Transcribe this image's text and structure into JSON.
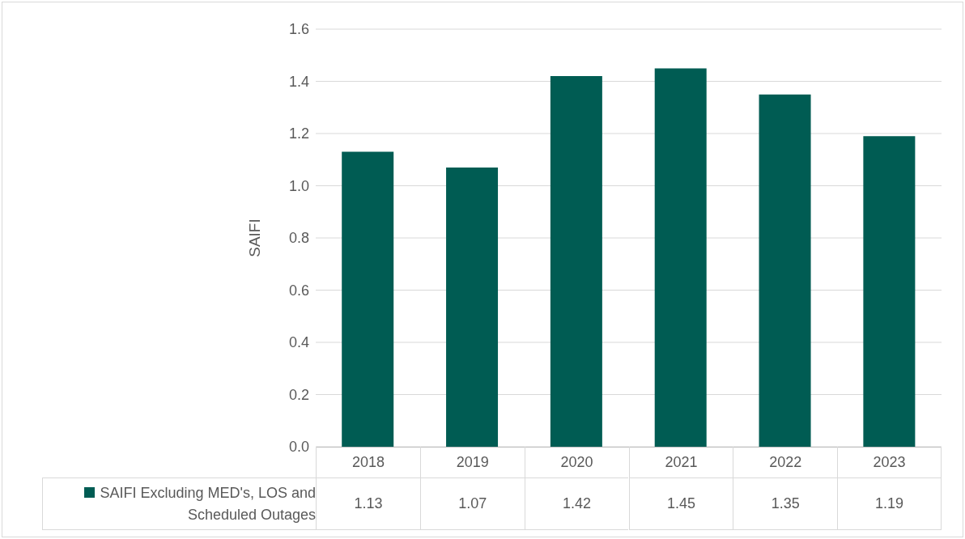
{
  "chart_data": {
    "type": "bar",
    "ylabel": "SAIFI",
    "categories": [
      "2018",
      "2019",
      "2020",
      "2021",
      "2022",
      "2023"
    ],
    "series": [
      {
        "name": "SAIFI Excluding MED's, LOS and Scheduled Outages",
        "color": "#005c53",
        "values": [
          1.13,
          1.07,
          1.42,
          1.45,
          1.35,
          1.19
        ]
      }
    ],
    "ylim": [
      0,
      1.6
    ],
    "yticks": [
      {
        "value": 0,
        "label": "0.0"
      },
      {
        "value": 0.2,
        "label": "0.2"
      },
      {
        "value": 0.4,
        "label": "0.4"
      },
      {
        "value": 0.6,
        "label": "0.6"
      },
      {
        "value": 0.8,
        "label": "0.8"
      },
      {
        "value": 1,
        "label": "1.0"
      },
      {
        "value": 1.2,
        "label": "1.2"
      },
      {
        "value": 1.4,
        "label": "1.4"
      },
      {
        "value": 1.6,
        "label": "1.6"
      }
    ],
    "grid": "y",
    "data_labels": true
  }
}
